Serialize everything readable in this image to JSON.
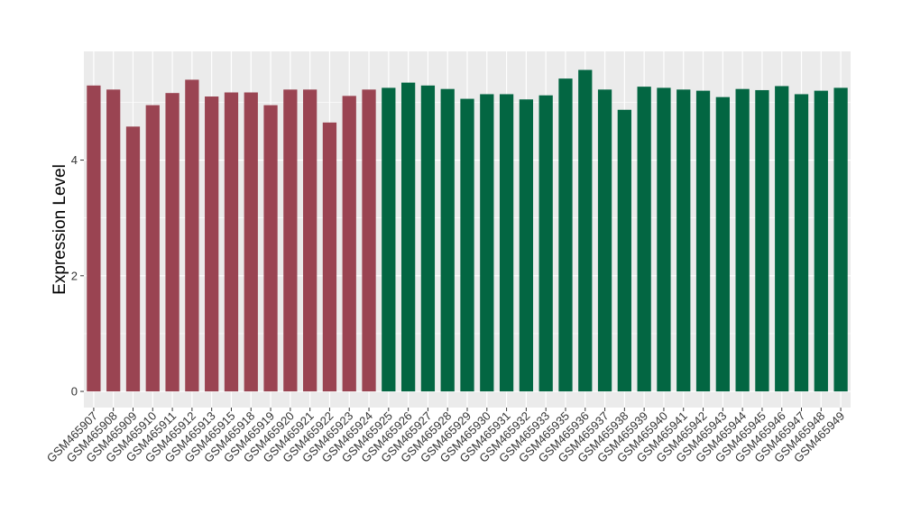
{
  "chart_data": {
    "type": "bar",
    "title": "",
    "xlabel": "",
    "ylabel": "Expression Level",
    "ylim": [
      -0.28,
      5.88
    ],
    "yticks": [
      0,
      2,
      4
    ],
    "grid": true,
    "legend": "none",
    "colors": {
      "groupA": "#9a4452",
      "groupB": "#036642",
      "panel": "#ebebeb",
      "grid": "#ffffff"
    },
    "categories": [
      "GSM465907",
      "GSM465908",
      "GSM465909",
      "GSM465910",
      "GSM465911",
      "GSM465912",
      "GSM465913",
      "GSM465915",
      "GSM465918",
      "GSM465919",
      "GSM465920",
      "GSM465921",
      "GSM465922",
      "GSM465923",
      "GSM465924",
      "GSM465925",
      "GSM465926",
      "GSM465927",
      "GSM465928",
      "GSM465929",
      "GSM465930",
      "GSM465931",
      "GSM465932",
      "GSM465933",
      "GSM465935",
      "GSM465936",
      "GSM465937",
      "GSM465938",
      "GSM465939",
      "GSM465940",
      "GSM465941",
      "GSM465942",
      "GSM465943",
      "GSM465944",
      "GSM465945",
      "GSM465946",
      "GSM465947",
      "GSM465948",
      "GSM465949"
    ],
    "values": [
      5.29,
      5.22,
      4.58,
      4.95,
      5.16,
      5.39,
      5.1,
      5.17,
      5.17,
      4.95,
      5.22,
      5.22,
      4.65,
      5.11,
      5.22,
      5.25,
      5.34,
      5.29,
      5.23,
      5.06,
      5.14,
      5.14,
      5.05,
      5.12,
      5.41,
      5.56,
      5.22,
      4.87,
      5.27,
      5.25,
      5.22,
      5.2,
      5.09,
      5.23,
      5.21,
      5.28,
      5.14,
      5.2,
      5.25
    ],
    "groups": [
      "A",
      "A",
      "A",
      "A",
      "A",
      "A",
      "A",
      "A",
      "A",
      "A",
      "A",
      "A",
      "A",
      "A",
      "A",
      "B",
      "B",
      "B",
      "B",
      "B",
      "B",
      "B",
      "B",
      "B",
      "B",
      "B",
      "B",
      "B",
      "B",
      "B",
      "B",
      "B",
      "B",
      "B",
      "B",
      "B",
      "B",
      "B",
      "B"
    ]
  }
}
